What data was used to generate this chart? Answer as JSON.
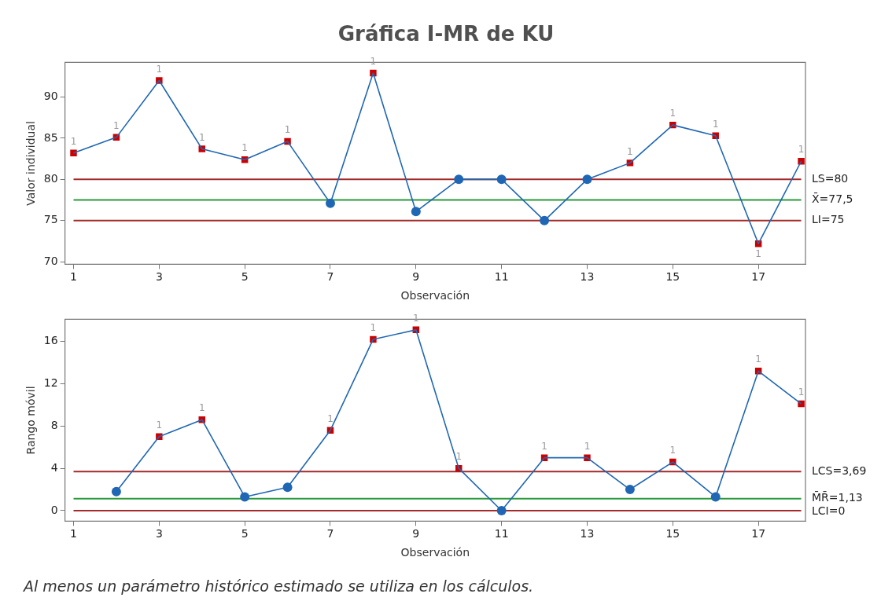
{
  "chart_data": [
    {
      "type": "line",
      "title": "Gráfica I-MR de KU",
      "xlabel": "Observación",
      "ylabel": "Valor individual",
      "x": [
        1,
        2,
        3,
        4,
        5,
        6,
        7,
        8,
        9,
        10,
        11,
        12,
        13,
        14,
        15,
        16,
        17,
        18
      ],
      "series": [
        {
          "color": "#1f67b4",
          "marker": "none",
          "values": [
            83.2,
            85.1,
            92,
            83.7,
            82.4,
            84.6,
            77.1,
            92.9,
            76.1,
            80,
            80,
            75,
            80,
            82,
            86.6,
            85.3,
            72.2,
            82.2
          ]
        },
        {
          "type": "scatter",
          "color": "#1f67b4",
          "marker": "circle",
          "values": [
            null,
            null,
            null,
            null,
            null,
            null,
            77.1,
            null,
            76.1,
            80,
            80,
            75,
            80,
            null,
            null,
            null,
            null,
            null
          ]
        },
        {
          "type": "scatter",
          "color": "#cc0000",
          "marker": "square",
          "values": [
            83.2,
            85.1,
            92,
            83.7,
            82.4,
            84.6,
            null,
            92.9,
            null,
            null,
            null,
            null,
            null,
            82,
            86.6,
            85.3,
            72.2,
            82.2
          ]
        }
      ],
      "xlim": [
        0.8,
        18.1
      ],
      "xticks": [
        1,
        3,
        5,
        7,
        9,
        11,
        13,
        15,
        17
      ],
      "ylim": [
        69.7,
        94.2
      ],
      "yticks": [
        70,
        75,
        80,
        85,
        90
      ],
      "ref_lines": [
        {
          "axis": "y",
          "value": 80,
          "label": "LS=80",
          "color": "#a52a2a"
        },
        {
          "axis": "y",
          "value": 77.5,
          "label": "X̄=77,5",
          "color": "#2a9a3a"
        },
        {
          "axis": "y",
          "value": 75,
          "label": "LI=75",
          "color": "#a52a2a"
        }
      ],
      "annotations": [
        {
          "text": "1",
          "x": 1,
          "y": 83.2
        },
        {
          "text": "1",
          "x": 2,
          "y": 85.1
        },
        {
          "text": "1",
          "x": 3,
          "y": 92
        },
        {
          "text": "1",
          "x": 4,
          "y": 83.7
        },
        {
          "text": "1",
          "x": 5,
          "y": 82.4
        },
        {
          "text": "1",
          "x": 6,
          "y": 84.6
        },
        {
          "text": "1",
          "x": 8,
          "y": 92.9
        },
        {
          "text": "1",
          "x": 14,
          "y": 82
        },
        {
          "text": "1",
          "x": 15,
          "y": 86.6
        },
        {
          "text": "1",
          "x": 16,
          "y": 85.3
        },
        {
          "text": "1",
          "x": 17,
          "y": 72.2
        },
        {
          "text": "1",
          "x": 18,
          "y": 82.2
        }
      ],
      "grid": false,
      "legend": false
    },
    {
      "type": "line",
      "xlabel": "Observación",
      "ylabel": "Rango móvil",
      "series": [
        {
          "color": "#1f67b4",
          "marker": "none",
          "x": [
            2,
            3,
            4,
            5,
            6,
            7,
            8,
            9,
            10,
            11,
            12,
            13,
            14,
            15,
            16,
            17,
            18
          ],
          "values": [
            1.8,
            7,
            8.6,
            1.3,
            2.2,
            7.6,
            16.2,
            17.1,
            4,
            0,
            5,
            5,
            2,
            4.6,
            1.3,
            13.2,
            10.1
          ]
        },
        {
          "type": "scatter",
          "color": "#1f67b4",
          "marker": "circle",
          "x": [
            2,
            5,
            6,
            11,
            14,
            16
          ],
          "values": [
            1.8,
            1.3,
            2.2,
            0,
            2,
            1.3
          ]
        },
        {
          "type": "scatter",
          "color": "#cc0000",
          "marker": "square",
          "x": [
            3,
            4,
            7,
            8,
            9,
            10,
            12,
            13,
            15,
            17,
            18
          ],
          "values": [
            7,
            8.6,
            7.6,
            16.2,
            17.1,
            4,
            5,
            5,
            4.6,
            13.2,
            10.1
          ]
        }
      ],
      "xlim": [
        0.8,
        18.1
      ],
      "xticks": [
        1,
        3,
        5,
        7,
        9,
        11,
        13,
        15,
        17
      ],
      "ylim": [
        -1,
        18.1
      ],
      "yticks": [
        0,
        4,
        8,
        12,
        16
      ],
      "ref_lines": [
        {
          "axis": "y",
          "value": 3.69,
          "label": "LCS=3,69",
          "color": "#a52a2a"
        },
        {
          "axis": "y",
          "value": 1.13,
          "label": "M̄R̄=1,13",
          "color": "#2a9a3a"
        },
        {
          "axis": "y",
          "value": 0,
          "label": "LCI=0",
          "color": "#a52a2a"
        }
      ],
      "annotations": [
        {
          "text": "1",
          "x": 3,
          "y": 7
        },
        {
          "text": "1",
          "x": 4,
          "y": 8.6
        },
        {
          "text": "1",
          "x": 7,
          "y": 7.6
        },
        {
          "text": "1",
          "x": 8,
          "y": 16.2
        },
        {
          "text": "1",
          "x": 9,
          "y": 17.1
        },
        {
          "text": "1",
          "x": 10,
          "y": 4
        },
        {
          "text": "1",
          "x": 12,
          "y": 5
        },
        {
          "text": "1",
          "x": 13,
          "y": 5
        },
        {
          "text": "1",
          "x": 15,
          "y": 4.6
        },
        {
          "text": "1",
          "x": 17,
          "y": 13.2
        },
        {
          "text": "1",
          "x": 18,
          "y": 10.1
        },
        "Al menos un parámetro histórico estimado se utiliza en los cálculos."
      ],
      "grid": false,
      "legend": false
    }
  ]
}
